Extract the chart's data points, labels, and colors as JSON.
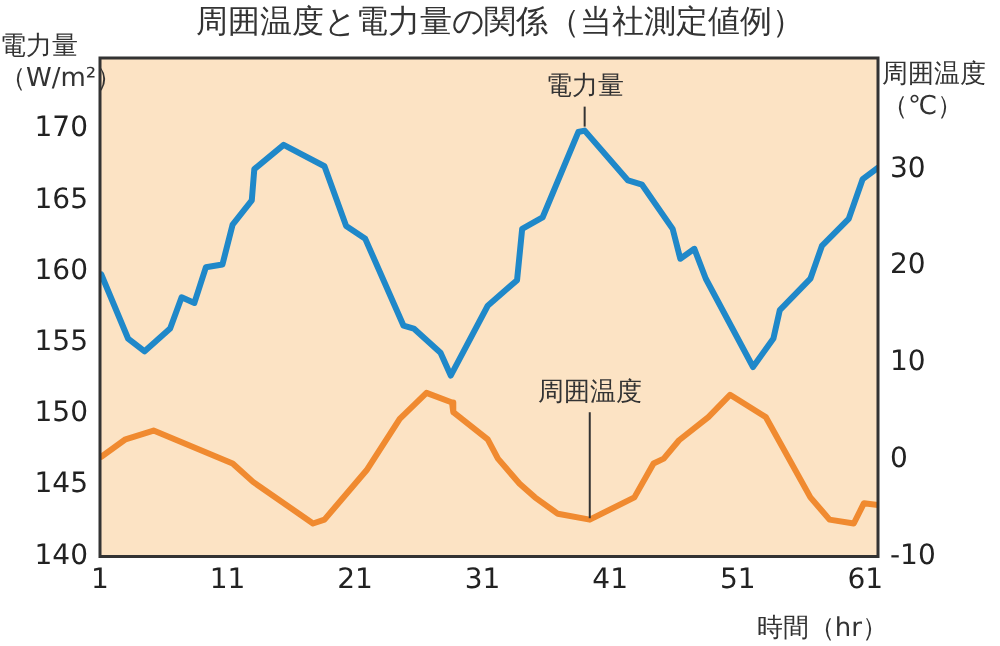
{
  "chart_data": {
    "type": "line",
    "title": "周囲温度と電力量の関係（当社測定値例）",
    "xlabel": "時間（hr）",
    "ylabel": "電力量（W/m²）",
    "y2label": "周囲温度（℃）",
    "xlim": [
      1,
      62
    ],
    "xticks": [
      1,
      11,
      21,
      31,
      41,
      51,
      61
    ],
    "ylim": [
      140,
      175
    ],
    "yticks": [
      140,
      145,
      150,
      155,
      160,
      165,
      170
    ],
    "y2lim": [
      -10,
      41.5
    ],
    "y2ticks": [
      -10,
      0,
      10,
      20,
      30
    ],
    "grid": false,
    "legend": false,
    "marker": "none",
    "line_style": "solid",
    "annotations": [
      {
        "text": "電力量",
        "x": 39,
        "y": 169.9
      },
      {
        "text": "周囲温度",
        "x": 39.4,
        "y": 142.4
      }
    ],
    "series": [
      {
        "color": "#1f88c9",
        "x": [
          1.1,
          3.2,
          4.5,
          6.5,
          7.4,
          8.4,
          9.3,
          10.6,
          11.4,
          12.9,
          13.1,
          15.4,
          18.6,
          20.3,
          21.8,
          24.8,
          25.6,
          27.7,
          28.5,
          31.4,
          33.7,
          34.1,
          35.7,
          38.5,
          39,
          42.4,
          43.5,
          45.9,
          46.5,
          47.6,
          48.5,
          52.2,
          53.8,
          54.3,
          56.7,
          57.6,
          59.7,
          60.8,
          62
        ],
        "values": [
          159.8,
          155.3,
          154.4,
          156,
          158.2,
          157.8,
          160.3,
          160.5,
          163.3,
          165,
          167.2,
          168.9,
          167.4,
          163.2,
          162.3,
          156.2,
          156,
          154.3,
          152.7,
          157.6,
          159.4,
          163,
          163.8,
          169.8,
          169.9,
          166.4,
          166.1,
          163,
          160.9,
          161.6,
          159.5,
          153.3,
          155.3,
          157.3,
          159.5,
          161.8,
          163.7,
          166.5,
          167.3
        ]
      },
      {
        "axis": "y2",
        "color": "#f08a30",
        "x": [
          1.1,
          3,
          5.2,
          11.4,
          13,
          17.7,
          18.6,
          21.9,
          24.5,
          26.6,
          28.6,
          28.7,
          31.4,
          32.2,
          33.9,
          35.1,
          36.9,
          39.4,
          42.9,
          44.4,
          45.2,
          46.4,
          48.7,
          50.4,
          53.2,
          56.7,
          58.2,
          60.1,
          60.9,
          62
        ],
        "values": [
          0.3,
          2.1,
          3,
          -0.4,
          -2.3,
          -6.6,
          -6.2,
          -1.1,
          4.2,
          6.9,
          5.9,
          4.9,
          2.1,
          0.1,
          -2.5,
          -3.9,
          -5.6,
          -6.2,
          -3.9,
          -0.4,
          0.1,
          2,
          4.4,
          6.7,
          4.4,
          -3.9,
          -6.2,
          -6.6,
          -4.5,
          -4.7
        ]
      }
    ]
  }
}
